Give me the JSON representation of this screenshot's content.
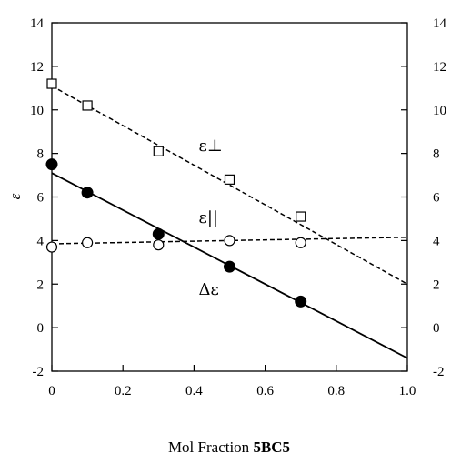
{
  "chart_data": {
    "type": "scatter",
    "title": "",
    "xlabel_prefix": "Mol Fraction ",
    "xlabel_bold": "5BC5",
    "ylabel": "ε",
    "xlim": [
      0,
      1.0
    ],
    "ylim": [
      -2,
      14
    ],
    "x_ticks": [
      "0",
      "0.2",
      "0.4",
      "0.6",
      "0.8",
      "1.0"
    ],
    "y_ticks": [
      "-2",
      "0",
      "2",
      "4",
      "6",
      "8",
      "10",
      "12",
      "14"
    ],
    "right_y_ticks": [
      "-2",
      "0",
      "2",
      "4",
      "6",
      "8",
      "10",
      "12",
      "14"
    ],
    "grid": false,
    "series": [
      {
        "name": "ε⊥",
        "marker": "open-square",
        "points": [
          [
            0,
            11.2
          ],
          [
            0.1,
            10.2
          ],
          [
            0.3,
            8.1
          ],
          [
            0.5,
            6.8
          ],
          [
            0.7,
            5.1
          ]
        ],
        "fit": {
          "style": "dashed",
          "x": [
            0,
            1.0
          ],
          "y": [
            11.1,
            2.0
          ]
        }
      },
      {
        "name": "ε||",
        "marker": "open-circle",
        "points": [
          [
            0,
            3.7
          ],
          [
            0.1,
            3.9
          ],
          [
            0.3,
            3.8
          ],
          [
            0.5,
            4.0
          ],
          [
            0.7,
            3.9
          ]
        ],
        "fit": {
          "style": "dashed",
          "x": [
            0,
            1.0
          ],
          "y": [
            3.85,
            4.15
          ]
        }
      },
      {
        "name": "Δε",
        "marker": "filled-circle",
        "points": [
          [
            0,
            7.5
          ],
          [
            0.1,
            6.2
          ],
          [
            0.3,
            4.3
          ],
          [
            0.5,
            2.8
          ],
          [
            0.7,
            1.2
          ]
        ],
        "fit": {
          "style": "solid",
          "x": [
            0,
            1.0
          ],
          "y": [
            7.1,
            -1.4
          ]
        }
      }
    ],
    "annotations": [
      {
        "text": "ε⊥",
        "x": 0.5,
        "y": 8.1
      },
      {
        "text": "ε||",
        "x": 0.5,
        "y": 4.8
      },
      {
        "text": "Δε",
        "x": 0.5,
        "y": 1.5
      }
    ]
  }
}
